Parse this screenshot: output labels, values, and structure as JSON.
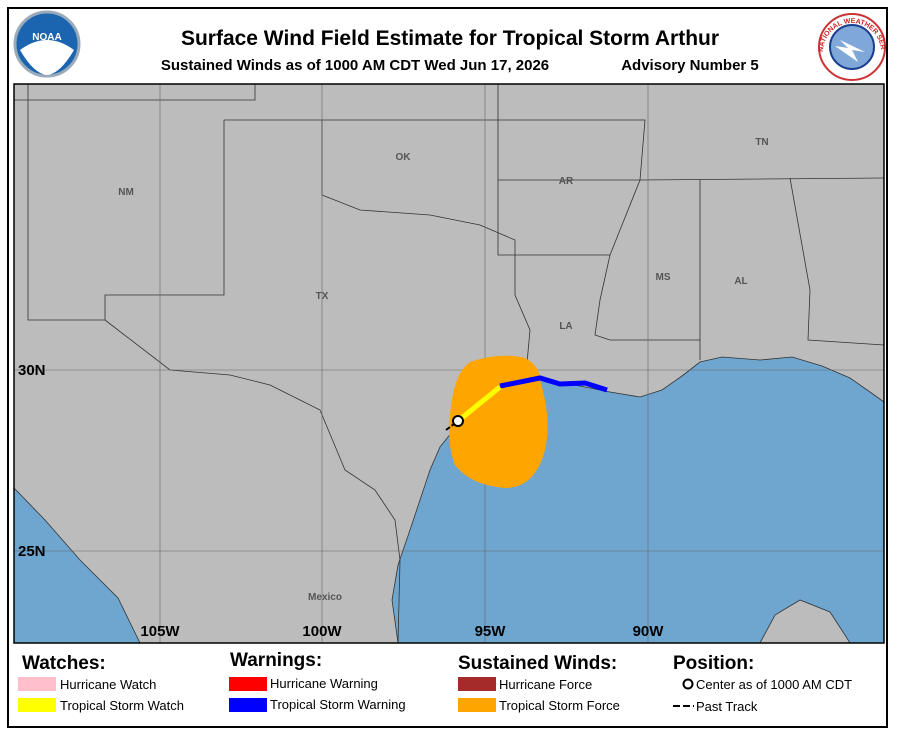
{
  "header": {
    "title": "Surface Wind Field Estimate for Tropical Storm Arthur",
    "subtitle": "Sustained Winds as of 1000 AM CDT Wed Jun 17, 2026",
    "advisory": "Advisory Number 5",
    "noaa_logo": "NOAA",
    "nws_logo": "NATIONAL WEATHER SERVICE"
  },
  "map": {
    "state_labels": [
      "NM",
      "OK",
      "AR",
      "TN",
      "TX",
      "MS",
      "AL",
      "LA",
      "Mexico"
    ],
    "lat_labels": [
      "30N",
      "25N"
    ],
    "lon_labels": [
      "105W",
      "100W",
      "95W",
      "90W"
    ]
  },
  "legend": {
    "watches": {
      "title": "Watches:",
      "items": [
        "Hurricane Watch",
        "Tropical Storm Watch"
      ]
    },
    "warnings": {
      "title": "Warnings:",
      "items": [
        "Hurricane Warning",
        "Tropical Storm Warning"
      ]
    },
    "winds": {
      "title": "Sustained Winds:",
      "items": [
        "Hurricane Force",
        "Tropical Storm Force"
      ]
    },
    "position": {
      "title": "Position:",
      "items": [
        "Center as of 1000 AM CDT",
        "Past Track"
      ]
    }
  }
}
